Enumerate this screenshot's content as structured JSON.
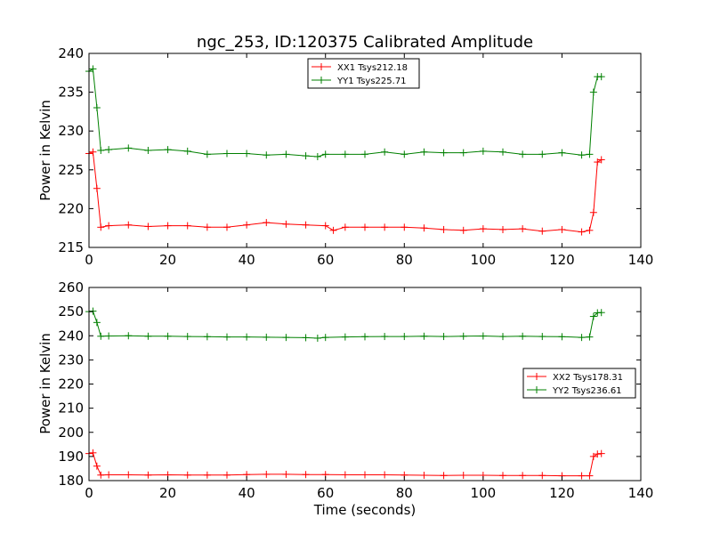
{
  "chart_data": [
    {
      "type": "line",
      "title": "ngc_253, ID:120375 Calibrated Amplitude",
      "xlabel": "",
      "ylabel": "Power in Kelvin",
      "xlim": [
        0,
        140
      ],
      "ylim": [
        215,
        240
      ],
      "xticks": [
        0,
        20,
        40,
        60,
        80,
        100,
        120,
        140
      ],
      "yticks": [
        215,
        220,
        225,
        230,
        235,
        240
      ],
      "legend_position": "top-center",
      "grid": false,
      "series": [
        {
          "name": "XX1 Tsys212.18",
          "color": "#ff0000",
          "marker": "+",
          "x": [
            0,
            1,
            2,
            3,
            5,
            10,
            15,
            20,
            25,
            30,
            35,
            40,
            45,
            50,
            55,
            60,
            62,
            65,
            70,
            75,
            80,
            85,
            90,
            95,
            100,
            105,
            110,
            115,
            120,
            125,
            127,
            128,
            129,
            130
          ],
          "y": [
            227.1,
            227.3,
            222.6,
            217.6,
            217.8,
            217.9,
            217.7,
            217.8,
            217.8,
            217.6,
            217.6,
            217.9,
            218.2,
            218.0,
            217.9,
            217.8,
            217.2,
            217.6,
            217.6,
            217.6,
            217.6,
            217.5,
            217.3,
            217.2,
            217.4,
            217.3,
            217.4,
            217.1,
            217.3,
            217.0,
            217.2,
            219.5,
            226.0,
            226.3
          ]
        },
        {
          "name": "YY1 Tsys225.71",
          "color": "#008000",
          "marker": "+",
          "x": [
            0,
            1,
            2,
            3,
            5,
            10,
            15,
            20,
            25,
            30,
            35,
            40,
            45,
            50,
            55,
            58,
            60,
            65,
            70,
            75,
            80,
            85,
            90,
            95,
            100,
            105,
            110,
            115,
            120,
            125,
            127,
            128,
            129,
            130
          ],
          "y": [
            237.7,
            238.0,
            233.0,
            227.5,
            227.6,
            227.8,
            227.5,
            227.6,
            227.4,
            227.0,
            227.1,
            227.1,
            226.9,
            227.0,
            226.8,
            226.7,
            227.0,
            227.0,
            227.0,
            227.3,
            227.0,
            227.3,
            227.2,
            227.2,
            227.4,
            227.3,
            227.0,
            227.0,
            227.2,
            226.9,
            227.0,
            235.0,
            237.0,
            237.0
          ]
        }
      ]
    },
    {
      "type": "line",
      "title": "",
      "xlabel": "Time (seconds)",
      "ylabel": "Power in Kelvin",
      "xlim": [
        0,
        140
      ],
      "ylim": [
        180,
        260
      ],
      "xticks": [
        0,
        20,
        40,
        60,
        80,
        100,
        120,
        140
      ],
      "yticks": [
        180,
        190,
        200,
        210,
        220,
        230,
        240,
        250,
        260
      ],
      "legend_position": "center-right",
      "grid": false,
      "series": [
        {
          "name": "XX2 Tsys178.31",
          "color": "#ff0000",
          "marker": "+",
          "x": [
            0,
            1,
            2,
            3,
            5,
            10,
            15,
            20,
            25,
            30,
            35,
            40,
            45,
            50,
            55,
            60,
            65,
            70,
            75,
            80,
            85,
            90,
            95,
            100,
            105,
            110,
            115,
            120,
            125,
            127,
            128,
            129,
            130
          ],
          "y": [
            191.2,
            191.5,
            186.0,
            182.3,
            182.4,
            182.4,
            182.3,
            182.4,
            182.3,
            182.3,
            182.3,
            182.5,
            182.6,
            182.6,
            182.5,
            182.5,
            182.4,
            182.4,
            182.4,
            182.3,
            182.2,
            182.1,
            182.2,
            182.2,
            182.1,
            182.1,
            182.1,
            182.0,
            182.0,
            182.0,
            190.0,
            191.0,
            191.2
          ]
        },
        {
          "name": "YY2 Tsys236.61",
          "color": "#008000",
          "marker": "+",
          "x": [
            0,
            1,
            2,
            3,
            5,
            10,
            15,
            20,
            25,
            30,
            35,
            40,
            45,
            50,
            55,
            58,
            60,
            65,
            70,
            75,
            80,
            85,
            90,
            95,
            100,
            105,
            110,
            115,
            120,
            125,
            127,
            128,
            129,
            130
          ],
          "y": [
            250.0,
            250.2,
            245.5,
            239.8,
            239.9,
            240.0,
            239.8,
            239.8,
            239.7,
            239.6,
            239.5,
            239.5,
            239.4,
            239.3,
            239.2,
            239.0,
            239.3,
            239.5,
            239.6,
            239.7,
            239.7,
            239.8,
            239.7,
            239.8,
            239.9,
            239.7,
            239.8,
            239.7,
            239.6,
            239.3,
            239.5,
            248.0,
            249.5,
            249.6
          ]
        }
      ]
    }
  ]
}
